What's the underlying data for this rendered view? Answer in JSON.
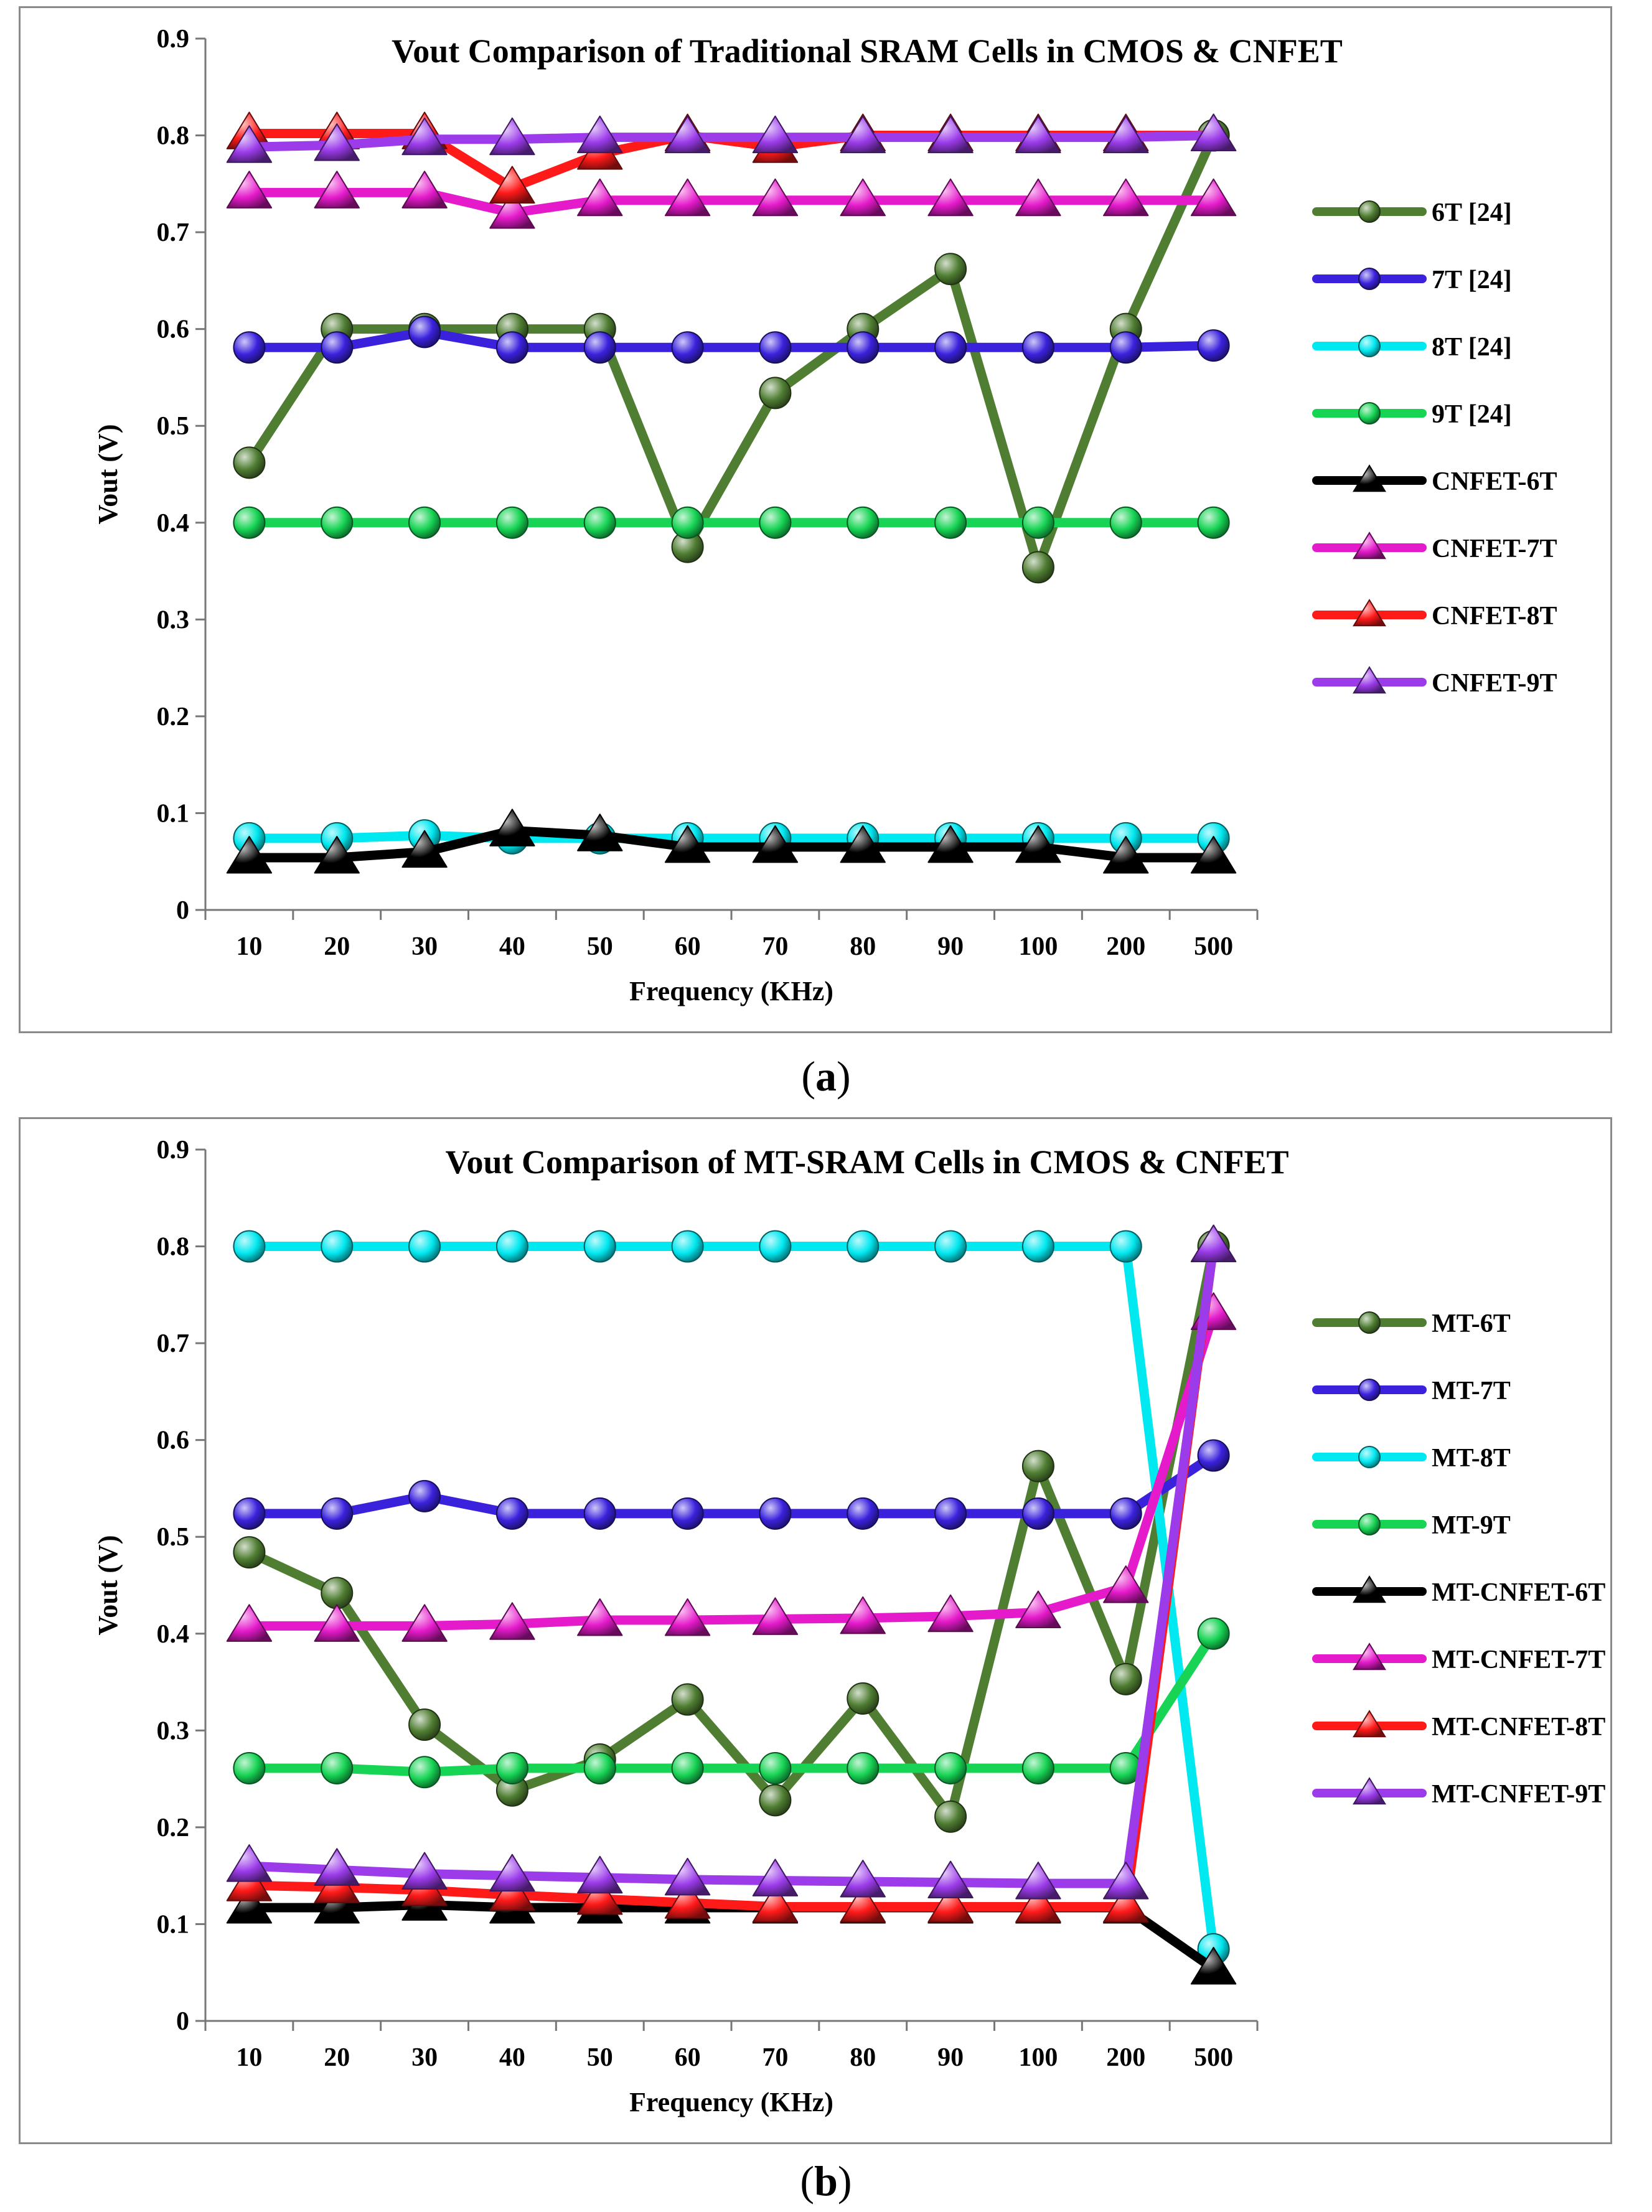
{
  "chart_data": [
    {
      "type": "line",
      "panel": "a",
      "title": "Vout Comparison of Traditional SRAM Cells in CMOS & CNFET",
      "xlabel": "Frequency (KHz)",
      "ylabel": "Vout (V)",
      "ylim": [
        0,
        0.9
      ],
      "yticks": [
        "0",
        "0.1",
        "0.2",
        "0.3",
        "0.4",
        "0.5",
        "0.6",
        "0.7",
        "0.8",
        "0.9"
      ],
      "categories": [
        "10",
        "20",
        "30",
        "40",
        "50",
        "60",
        "70",
        "80",
        "90",
        "100",
        "200",
        "500"
      ],
      "legend": "right",
      "caption": "a",
      "series": [
        {
          "name": "6T [24]",
          "color": "#4f7d32",
          "marker": "ball",
          "values": [
            0.462,
            0.6,
            0.6,
            0.6,
            0.6,
            0.375,
            0.534,
            0.6,
            0.662,
            0.354,
            0.6,
            0.8
          ]
        },
        {
          "name": "7T [24]",
          "color": "#3a22dd",
          "marker": "ball",
          "values": [
            0.581,
            0.581,
            0.597,
            0.581,
            0.581,
            0.581,
            0.581,
            0.581,
            0.581,
            0.581,
            0.581,
            0.583
          ]
        },
        {
          "name": "8T [24]",
          "color": "#00e8f0",
          "marker": "ball",
          "values": [
            0.074,
            0.074,
            0.077,
            0.074,
            0.074,
            0.074,
            0.074,
            0.074,
            0.074,
            0.074,
            0.074,
            0.074
          ]
        },
        {
          "name": "9T [24]",
          "color": "#17d454",
          "marker": "ball",
          "values": [
            0.4,
            0.4,
            0.4,
            0.4,
            0.4,
            0.4,
            0.4,
            0.4,
            0.4,
            0.4,
            0.4,
            0.4
          ]
        },
        {
          "name": "CNFET-6T",
          "color": "#000000",
          "marker": "triangle",
          "values": [
            0.054,
            0.054,
            0.06,
            0.082,
            0.077,
            0.065,
            0.065,
            0.065,
            0.065,
            0.065,
            0.054,
            0.054
          ]
        },
        {
          "name": "CNFET-7T",
          "color": "#e51acb",
          "marker": "triangle",
          "values": [
            0.741,
            0.741,
            0.741,
            0.72,
            0.733,
            0.733,
            0.733,
            0.733,
            0.733,
            0.733,
            0.733,
            0.733
          ]
        },
        {
          "name": "CNFET-8T",
          "color": "#ff1a1a",
          "marker": "triangle",
          "values": [
            0.802,
            0.802,
            0.802,
            0.746,
            0.781,
            0.8,
            0.788,
            0.8,
            0.8,
            0.8,
            0.8,
            0.8
          ]
        },
        {
          "name": "CNFET-9T",
          "color": "#9b3bea",
          "marker": "triangle",
          "values": [
            0.788,
            0.79,
            0.796,
            0.796,
            0.798,
            0.798,
            0.798,
            0.798,
            0.798,
            0.798,
            0.798,
            0.8
          ]
        }
      ]
    },
    {
      "type": "line",
      "panel": "b",
      "title": "Vout Comparison of MT-SRAM Cells in CMOS & CNFET",
      "xlabel": "Frequency (KHz)",
      "ylabel": "Vout (V)",
      "ylim": [
        0,
        0.9
      ],
      "yticks": [
        "0",
        "0.1",
        "0.2",
        "0.3",
        "0.4",
        "0.5",
        "0.6",
        "0.7",
        "0.8",
        "0.9"
      ],
      "categories": [
        "10",
        "20",
        "30",
        "40",
        "50",
        "60",
        "70",
        "80",
        "90",
        "100",
        "200",
        "500"
      ],
      "legend": "right",
      "caption": "b",
      "series": [
        {
          "name": "MT-6T",
          "color": "#4f7d32",
          "marker": "ball",
          "values": [
            0.484,
            0.442,
            0.306,
            0.238,
            0.27,
            0.332,
            0.228,
            0.333,
            0.211,
            0.573,
            0.353,
            0.8
          ]
        },
        {
          "name": "MT-7T",
          "color": "#3a22dd",
          "marker": "ball",
          "values": [
            0.524,
            0.524,
            0.542,
            0.524,
            0.524,
            0.524,
            0.524,
            0.524,
            0.524,
            0.524,
            0.524,
            0.584
          ]
        },
        {
          "name": "MT-8T",
          "color": "#00e8f0",
          "marker": "ball",
          "values": [
            0.8,
            0.8,
            0.8,
            0.8,
            0.8,
            0.8,
            0.8,
            0.8,
            0.8,
            0.8,
            0.8,
            0.074
          ]
        },
        {
          "name": "MT-9T",
          "color": "#17d454",
          "marker": "ball",
          "values": [
            0.261,
            0.261,
            0.257,
            0.261,
            0.261,
            0.261,
            0.261,
            0.261,
            0.261,
            0.261,
            0.261,
            0.4
          ]
        },
        {
          "name": "MT-CNFET-6T",
          "color": "#000000",
          "marker": "triangle",
          "values": [
            0.117,
            0.117,
            0.12,
            0.117,
            0.117,
            0.117,
            0.117,
            0.117,
            0.117,
            0.117,
            0.117,
            0.054
          ]
        },
        {
          "name": "MT-CNFET-7T",
          "color": "#e51acb",
          "marker": "triangle",
          "values": [
            0.408,
            0.408,
            0.408,
            0.41,
            0.414,
            0.414,
            0.415,
            0.416,
            0.418,
            0.422,
            0.448,
            0.73
          ]
        },
        {
          "name": "MT-CNFET-8T",
          "color": "#ff1a1a",
          "marker": "triangle",
          "values": [
            0.14,
            0.138,
            0.135,
            0.13,
            0.126,
            0.122,
            0.118,
            0.118,
            0.118,
            0.118,
            0.118,
            0.8
          ]
        },
        {
          "name": "MT-CNFET-9T",
          "color": "#9b3bea",
          "marker": "triangle",
          "values": [
            0.16,
            0.156,
            0.152,
            0.15,
            0.148,
            0.146,
            0.145,
            0.144,
            0.143,
            0.142,
            0.142,
            0.8
          ]
        }
      ]
    }
  ]
}
